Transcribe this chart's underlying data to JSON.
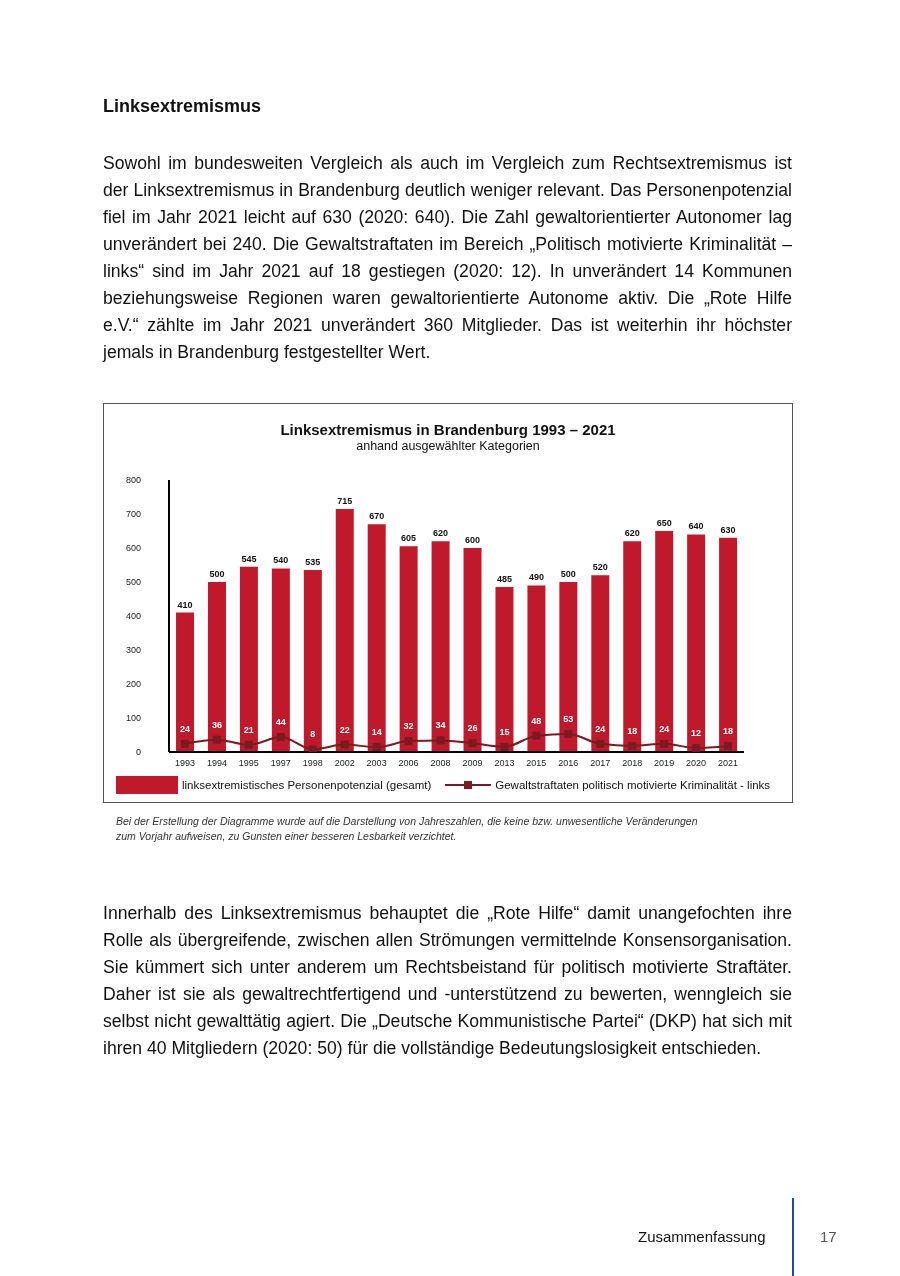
{
  "chart_data": {
    "type": "bar",
    "title": "Linksextremismus in Brandenburg 1993 – 2021",
    "subtitle": "anhand ausgewählter Kategorien",
    "categories": [
      "1993",
      "1994",
      "1995",
      "1997",
      "1998",
      "2002",
      "2003",
      "2006",
      "2008",
      "2009",
      "2013",
      "2015",
      "2016",
      "2017",
      "2018",
      "2019",
      "2020",
      "2021"
    ],
    "series": [
      {
        "name": "linksextremistisches Personenpotenzial (gesamt)",
        "color": "#c0192c",
        "values": [
          410,
          500,
          545,
          540,
          535,
          715,
          670,
          605,
          620,
          600,
          485,
          490,
          500,
          520,
          620,
          650,
          640,
          630
        ]
      },
      {
        "name": "Gewaltstraftaten politisch motivierte Kriminalität - links",
        "type": "line",
        "color": "#7a1a22",
        "values": [
          24,
          36,
          21,
          44,
          8,
          22,
          14,
          32,
          34,
          26,
          15,
          48,
          53,
          24,
          18,
          24,
          12,
          18
        ]
      }
    ],
    "ylim": [
      0,
      800
    ],
    "yticks": [
      0,
      100,
      200,
      300,
      400,
      500,
      600,
      700,
      800
    ],
    "data_labels": true,
    "legend": "bottom",
    "marker": "square",
    "line_style": "solid",
    "annotations": [
      "Linksextremismus",
      "Sowohl im bundesweiten Vergleich als auch im Vergleich zum Rechtsextremismus ist der Linksextremismus in Brandenburg deutlich weniger relevant. Das Personenpotenzial fiel im Jahr 2021 leicht auf 630 (2020: 640). Die Zahl gewaltorientierter Autonomer lag unverändert bei 240. Die Gewaltstraftaten im Bereich „Politisch motivierte Kriminalität – links“ sind im Jahr 2021 auf 18 gestiegen (2020: 12). In unverändert 14 Kommunen beziehungsweise Regionen waren gewaltorientierte Autonome aktiv. Die „Rote Hilfe e.V.“ zählte im Jahr 2021 unverändert 360 Mitglieder. Das ist weiterhin ihr höchster jemals in Brandenburg festgestellter Wert.",
      "Bei der Erstellung der Diagramme wurde auf die Darstellung von Jahreszahlen, die keine bzw. unwesentliche Veränderungen zum Vorjahr aufweisen, zu Gunsten einer besseren Lesbarkeit verzichtet.",
      "Innerhalb des Linksextremismus behauptet die „Rote Hilfe“ damit unangefochten ihre Rolle als übergreifende, zwischen allen Strömungen vermittelnde Konsensorganisation. Sie kümmert sich unter anderem um Rechtsbeistand für politisch motivierte Straftäter. Daher ist sie als gewaltrechtfertigend und -unterstützend zu bewerten, wenngleich sie selbst nicht gewalttätig agiert. Die „Deutsche Kommunistische Partei“ (DKP) hat sich mit ihren 40 Mitgliedern (2020: 50) für die vollständige Bedeutungslosigkeit entschieden.",
      "Zusammenfassung",
      "17"
    ]
  }
}
